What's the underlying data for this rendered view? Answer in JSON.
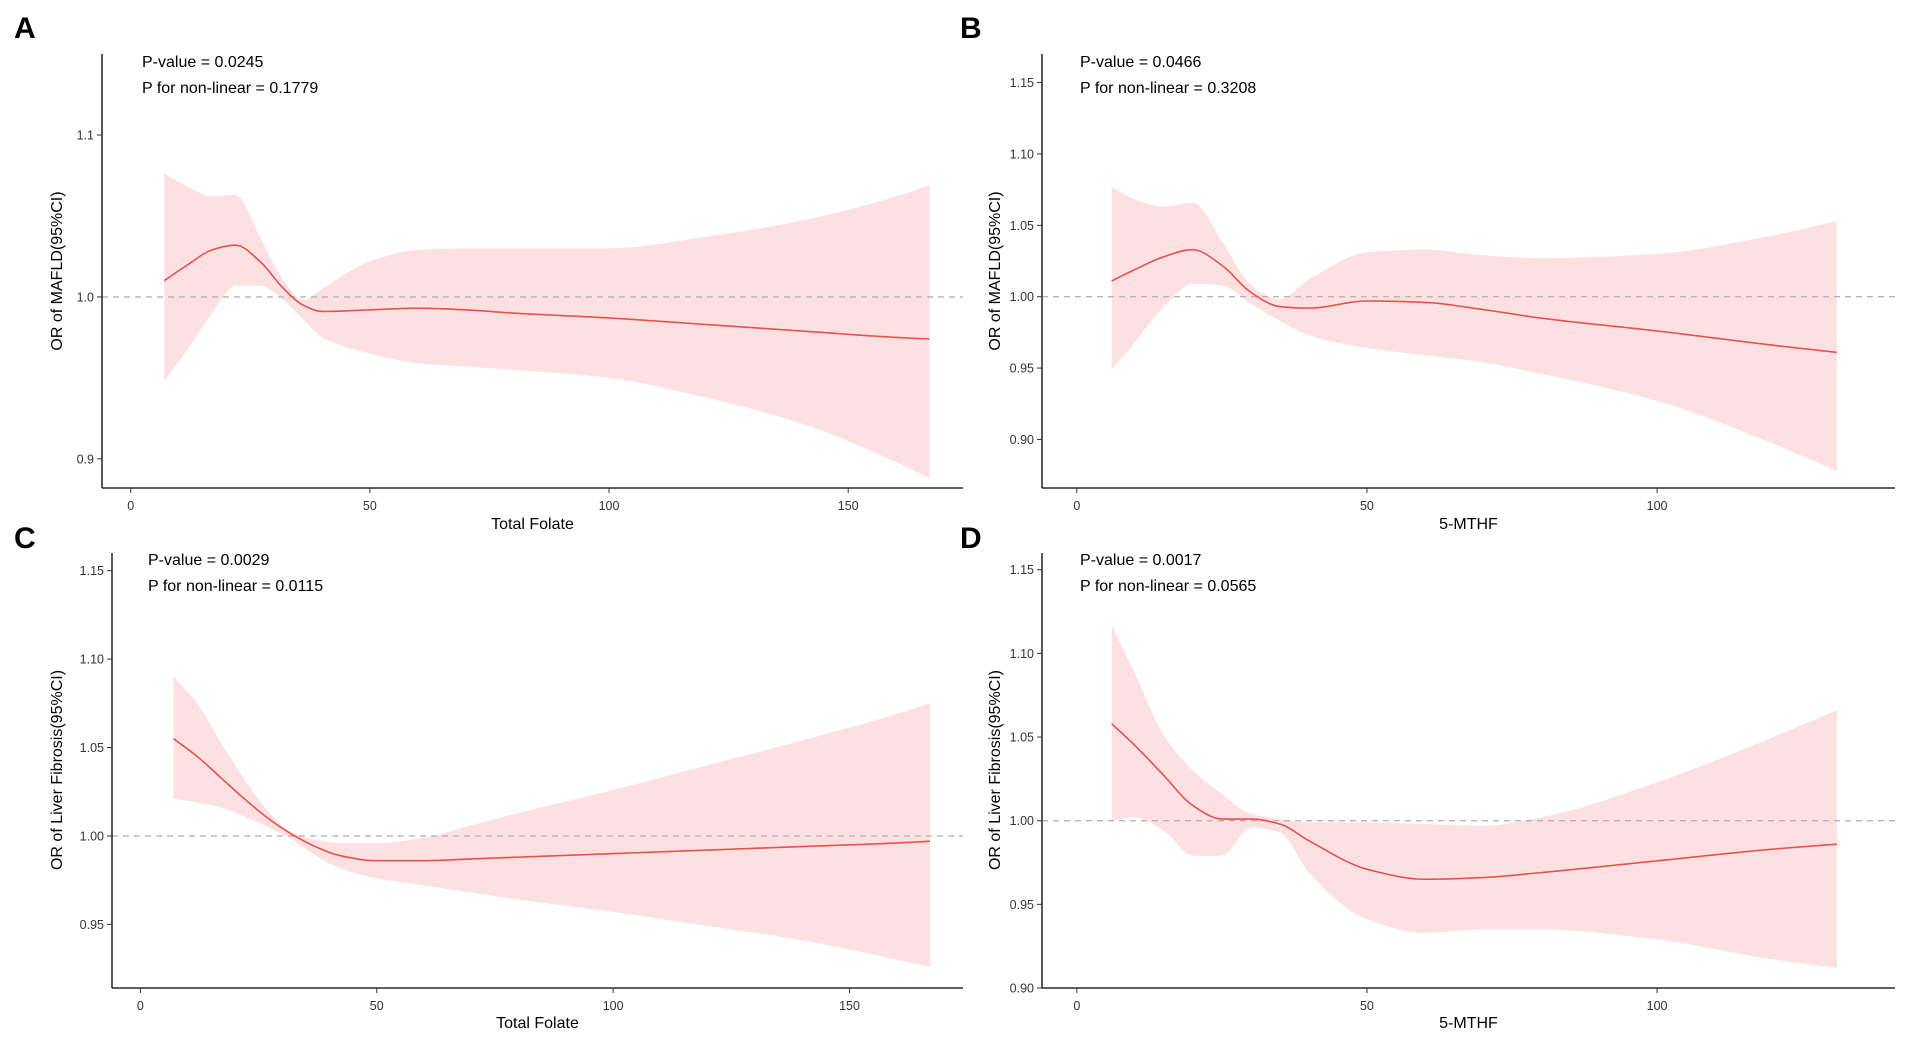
{
  "colors": {
    "line": "#e3524f",
    "band": "#fde1e2",
    "ref": "#b5b5b5",
    "axis": "#000000"
  },
  "chart_data": [
    {
      "panel": "A",
      "type": "line",
      "p_value": "P-value = 0.0245",
      "p_nonlinear": "P for non-linear = 0.1779",
      "xlabel": "Total Folate",
      "ylabel": "OR of MAFLD(95%CI)",
      "xlim": [
        -6,
        174
      ],
      "ylim": [
        0.882,
        1.15
      ],
      "xticks": [
        0,
        50,
        100,
        150
      ],
      "xtick_labels": [
        "0",
        "50",
        "100",
        "150"
      ],
      "yticks": [
        0.9,
        1.0,
        1.1
      ],
      "ytick_labels": [
        "0.9",
        "1.0",
        "1.1"
      ],
      "reference_y": 1.0,
      "series": [
        {
          "name": "OR",
          "x": [
            7,
            12,
            17,
            22,
            27,
            32,
            36,
            40,
            50,
            60,
            70,
            80,
            100,
            120,
            140,
            160,
            167
          ],
          "y": [
            1.01,
            1.02,
            1.029,
            1.032,
            1.022,
            1.005,
            0.995,
            0.991,
            0.992,
            0.993,
            0.992,
            0.99,
            0.987,
            0.983,
            0.979,
            0.975,
            0.974
          ],
          "lower": [
            0.948,
            0.968,
            0.99,
            1.007,
            1.007,
            0.998,
            0.986,
            0.975,
            0.965,
            0.959,
            0.957,
            0.955,
            0.95,
            0.938,
            0.922,
            0.898,
            0.888
          ],
          "upper": [
            1.076,
            1.068,
            1.062,
            1.063,
            1.037,
            1.01,
            0.998,
            1.005,
            1.022,
            1.029,
            1.03,
            1.03,
            1.03,
            1.037,
            1.047,
            1.062,
            1.069
          ]
        }
      ]
    },
    {
      "panel": "B",
      "type": "line",
      "p_value": "P-value = 0.0466",
      "p_nonlinear": "P for non-linear = 0.3208",
      "xlabel": "5-MTHF",
      "ylabel": "OR of MAFLD(95%CI)",
      "xlim": [
        -6,
        141
      ],
      "ylim": [
        0.866,
        1.17
      ],
      "xticks": [
        0,
        50,
        100
      ],
      "xtick_labels": [
        "0",
        "50",
        "100"
      ],
      "yticks": [
        0.9,
        0.95,
        1.0,
        1.05,
        1.1,
        1.15
      ],
      "ytick_labels": [
        "0.90",
        "0.95",
        "1.00",
        "1.05",
        "1.10",
        "1.15"
      ],
      "reference_y": 1.0,
      "series": [
        {
          "name": "OR",
          "x": [
            6,
            10,
            15,
            20,
            25,
            30,
            35,
            40,
            50,
            60,
            70,
            80,
            100,
            120,
            131
          ],
          "y": [
            1.011,
            1.019,
            1.028,
            1.033,
            1.022,
            1.003,
            0.993,
            0.992,
            0.997,
            0.996,
            0.991,
            0.985,
            0.976,
            0.966,
            0.961
          ],
          "lower": [
            0.949,
            0.968,
            0.993,
            1.009,
            1.008,
            0.995,
            0.983,
            0.973,
            0.964,
            0.959,
            0.954,
            0.946,
            0.927,
            0.897,
            0.878
          ],
          "upper": [
            1.077,
            1.068,
            1.063,
            1.066,
            1.039,
            1.008,
            0.998,
            1.012,
            1.031,
            1.033,
            1.029,
            1.027,
            1.03,
            1.043,
            1.053
          ]
        }
      ]
    },
    {
      "panel": "C",
      "type": "line",
      "p_value": "P-value = 0.0029",
      "p_nonlinear": "P for non-linear = 0.0115",
      "xlabel": "Total Folate",
      "ylabel": "OR of Liver Fibrosis(95%CI)",
      "xlim": [
        -6,
        174
      ],
      "ylim": [
        0.914,
        1.16
      ],
      "xticks": [
        0,
        50,
        100,
        150
      ],
      "xtick_labels": [
        "0",
        "50",
        "100",
        "150"
      ],
      "yticks": [
        0.95,
        1.0,
        1.05,
        1.1,
        1.15
      ],
      "ytick_labels": [
        "0.95",
        "1.00",
        "1.05",
        "1.10",
        "1.15"
      ],
      "reference_y": 1.0,
      "series": [
        {
          "name": "OR",
          "x": [
            7,
            12,
            17,
            22,
            27,
            32,
            37,
            42,
            50,
            60,
            70,
            80,
            100,
            120,
            140,
            160,
            167
          ],
          "y": [
            1.055,
            1.045,
            1.033,
            1.021,
            1.01,
            1.001,
            0.994,
            0.989,
            0.986,
            0.986,
            0.987,
            0.988,
            0.99,
            0.992,
            0.994,
            0.996,
            0.997
          ],
          "lower": [
            1.021,
            1.019,
            1.016,
            1.011,
            1.005,
            0.998,
            0.989,
            0.982,
            0.976,
            0.972,
            0.968,
            0.964,
            0.957,
            0.949,
            0.941,
            0.93,
            0.926
          ],
          "upper": [
            1.09,
            1.075,
            1.053,
            1.032,
            1.014,
            1.002,
            0.998,
            0.996,
            0.996,
            0.999,
            1.006,
            1.013,
            1.026,
            1.04,
            1.054,
            1.069,
            1.075
          ]
        }
      ]
    },
    {
      "panel": "D",
      "type": "line",
      "p_value": "P-value = 0.0017",
      "p_nonlinear": "P for non-linear = 0.0565",
      "xlabel": "5-MTHF",
      "ylabel": "OR of Liver Fibrosis(95%CI)",
      "xlim": [
        -6,
        141
      ],
      "ylim": [
        0.9,
        1.16
      ],
      "xticks": [
        0,
        50,
        100
      ],
      "xtick_labels": [
        "0",
        "50",
        "100"
      ],
      "yticks": [
        0.9,
        0.95,
        1.0,
        1.05,
        1.1,
        1.15
      ],
      "ytick_labels": [
        "0.90",
        "0.95",
        "1.00",
        "1.05",
        "1.10",
        "1.15"
      ],
      "reference_y": 1.0,
      "series": [
        {
          "name": "OR",
          "x": [
            6,
            10,
            15,
            20,
            25,
            30,
            35,
            40,
            50,
            60,
            70,
            80,
            100,
            120,
            131
          ],
          "y": [
            1.058,
            1.045,
            1.027,
            1.009,
            1.001,
            1.001,
            0.998,
            0.988,
            0.971,
            0.965,
            0.966,
            0.969,
            0.976,
            0.983,
            0.986
          ],
          "lower": [
            1.0,
            1.002,
            0.994,
            0.979,
            0.979,
            0.996,
            0.993,
            0.969,
            0.941,
            0.933,
            0.935,
            0.935,
            0.929,
            0.917,
            0.912
          ],
          "upper": [
            1.117,
            1.088,
            1.051,
            1.03,
            1.016,
            1.004,
            1.001,
            0.999,
            0.999,
            0.998,
            0.997,
            1.002,
            1.023,
            1.05,
            1.066
          ]
        }
      ]
    }
  ]
}
